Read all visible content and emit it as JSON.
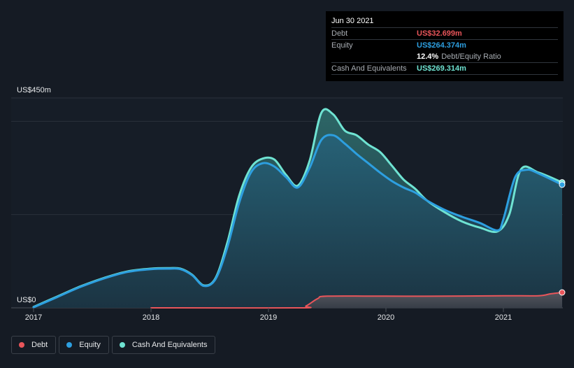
{
  "chart_data": {
    "type": "area",
    "title": "",
    "y_top_label": "US$450m",
    "y_bottom_label": "US$0",
    "ylim": [
      0,
      450
    ],
    "xlim": [
      2017.0,
      2021.5
    ],
    "x_ticks": [
      {
        "value": 2017,
        "label": "2017"
      },
      {
        "value": 2018,
        "label": "2018"
      },
      {
        "value": 2019,
        "label": "2019"
      },
      {
        "value": 2020,
        "label": "2020"
      },
      {
        "value": 2021,
        "label": "2021"
      }
    ],
    "grid_values": [
      450,
      400,
      200,
      0
    ],
    "series": [
      {
        "name": "Cash And Equivalents",
        "color": "#6fe3d2",
        "points": [
          [
            2017.0,
            2
          ],
          [
            2017.2,
            24
          ],
          [
            2017.4,
            46
          ],
          [
            2017.6,
            64
          ],
          [
            2017.8,
            78
          ],
          [
            2018.0,
            84
          ],
          [
            2018.15,
            85
          ],
          [
            2018.25,
            84
          ],
          [
            2018.35,
            71
          ],
          [
            2018.45,
            48
          ],
          [
            2018.55,
            64
          ],
          [
            2018.65,
            140
          ],
          [
            2018.75,
            240
          ],
          [
            2018.85,
            300
          ],
          [
            2018.95,
            320
          ],
          [
            2019.05,
            318
          ],
          [
            2019.15,
            285
          ],
          [
            2019.25,
            262
          ],
          [
            2019.35,
            315
          ],
          [
            2019.45,
            418
          ],
          [
            2019.55,
            415
          ],
          [
            2019.65,
            380
          ],
          [
            2019.75,
            370
          ],
          [
            2019.85,
            350
          ],
          [
            2019.95,
            334
          ],
          [
            2020.05,
            305
          ],
          [
            2020.15,
            275
          ],
          [
            2020.25,
            255
          ],
          [
            2020.35,
            230
          ],
          [
            2020.5,
            205
          ],
          [
            2020.65,
            185
          ],
          [
            2020.8,
            172
          ],
          [
            2020.95,
            164
          ],
          [
            2021.05,
            200
          ],
          [
            2021.15,
            297
          ],
          [
            2021.3,
            290
          ],
          [
            2021.5,
            269
          ]
        ]
      },
      {
        "name": "Equity",
        "color": "#2d9fe0",
        "points": [
          [
            2017.0,
            1
          ],
          [
            2017.2,
            23
          ],
          [
            2017.4,
            45
          ],
          [
            2017.6,
            63
          ],
          [
            2017.8,
            77
          ],
          [
            2018.0,
            83
          ],
          [
            2018.15,
            84
          ],
          [
            2018.25,
            83
          ],
          [
            2018.35,
            70
          ],
          [
            2018.45,
            47
          ],
          [
            2018.55,
            62
          ],
          [
            2018.65,
            130
          ],
          [
            2018.75,
            225
          ],
          [
            2018.85,
            290
          ],
          [
            2018.95,
            310
          ],
          [
            2019.05,
            303
          ],
          [
            2019.15,
            280
          ],
          [
            2019.25,
            258
          ],
          [
            2019.35,
            300
          ],
          [
            2019.45,
            360
          ],
          [
            2019.55,
            370
          ],
          [
            2019.65,
            352
          ],
          [
            2019.75,
            330
          ],
          [
            2019.85,
            310
          ],
          [
            2019.95,
            290
          ],
          [
            2020.05,
            272
          ],
          [
            2020.15,
            258
          ],
          [
            2020.25,
            247
          ],
          [
            2020.35,
            230
          ],
          [
            2020.5,
            210
          ],
          [
            2020.65,
            195
          ],
          [
            2020.8,
            182
          ],
          [
            2020.95,
            166
          ],
          [
            2021.0,
            190
          ],
          [
            2021.1,
            280
          ],
          [
            2021.2,
            296
          ],
          [
            2021.3,
            288
          ],
          [
            2021.5,
            264
          ]
        ]
      },
      {
        "name": "Debt",
        "color": "#e8555a",
        "points": [
          [
            2018.0,
            0
          ],
          [
            2019.25,
            0
          ],
          [
            2019.32,
            4
          ],
          [
            2019.42,
            20
          ],
          [
            2019.5,
            25
          ],
          [
            2020.0,
            25
          ],
          [
            2020.5,
            25
          ],
          [
            2021.0,
            26
          ],
          [
            2021.3,
            26
          ],
          [
            2021.4,
            30
          ],
          [
            2021.5,
            33
          ]
        ]
      }
    ]
  },
  "tooltip": {
    "date": "Jun 30 2021",
    "debt_label": "Debt",
    "debt_value": "US$32.699m",
    "equity_label": "Equity",
    "equity_value": "US$264.374m",
    "ratio_value": "12.4%",
    "ratio_label": "Debt/Equity Ratio",
    "cash_label": "Cash And Equivalents",
    "cash_value": "US$269.314m"
  },
  "colors": {
    "debt": "#e8555a",
    "equity": "#2d9fe0",
    "cash": "#6fe3d2"
  },
  "legend": {
    "debt_label": "Debt",
    "equity_label": "Equity",
    "cash_label": "Cash And Equivalents"
  }
}
